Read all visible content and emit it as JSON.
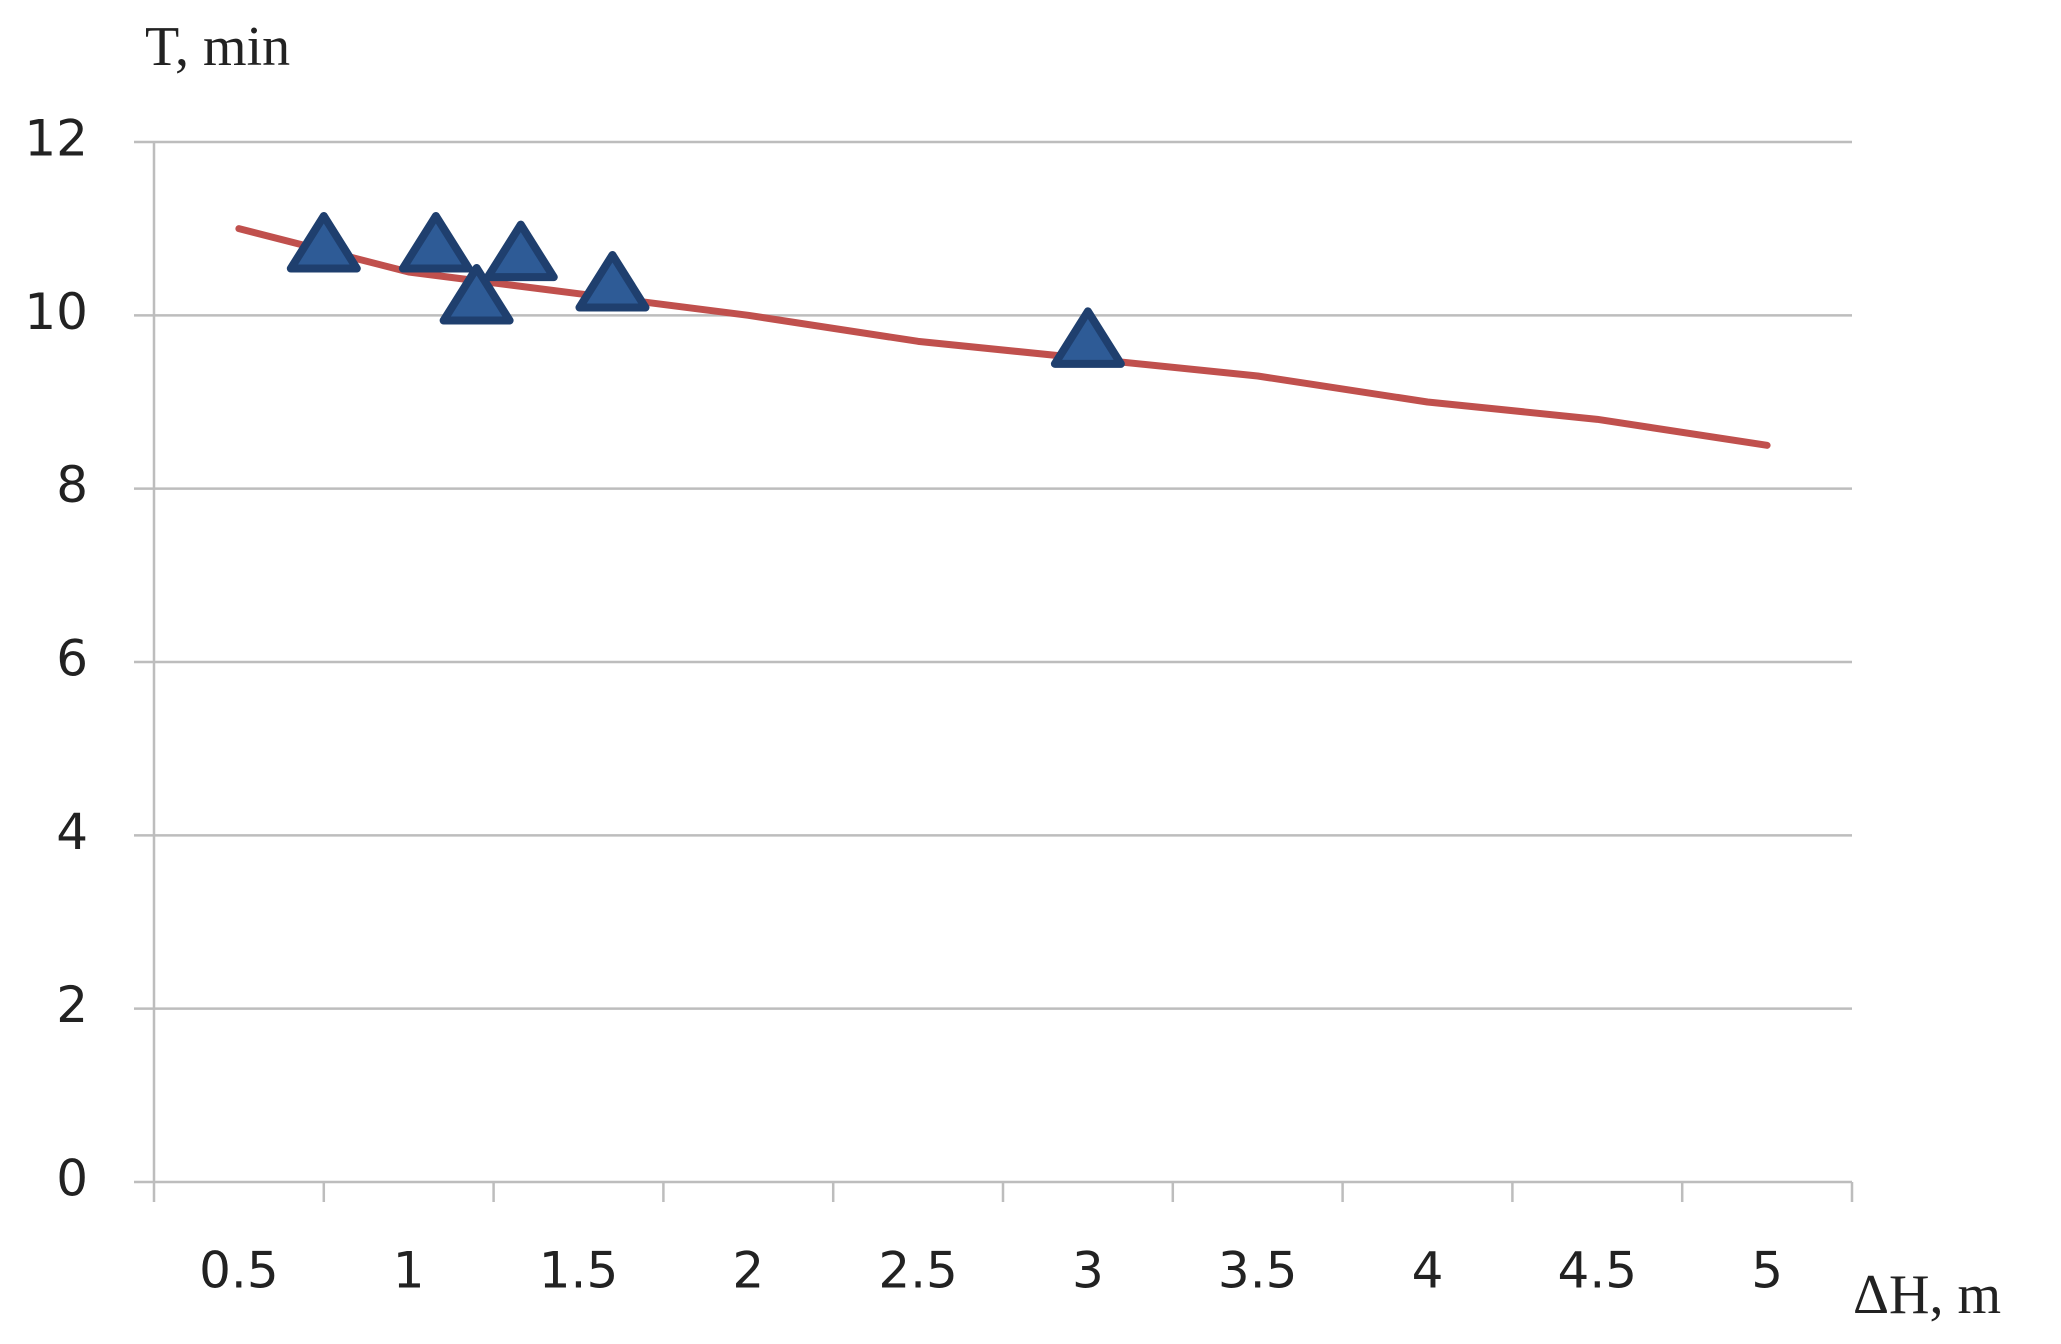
{
  "chart_data": {
    "type": "line",
    "y_label": "T, min",
    "x_label": "ΔH, m",
    "xlim": [
      0.25,
      5.25
    ],
    "xticks": [
      0.5,
      1,
      1.5,
      2,
      2.5,
      3,
      3.5,
      4,
      4.5,
      5
    ],
    "xminor_ticks": [
      0.25,
      0.75,
      1.25,
      1.75,
      2.25,
      2.75,
      3.25,
      3.75,
      4.25,
      4.75,
      5.25
    ],
    "ylim": [
      0,
      12
    ],
    "yticks": [
      0,
      2,
      4,
      6,
      8,
      10,
      12
    ],
    "grid": true,
    "series": [
      {
        "kind": "line",
        "color": "#c0504d",
        "x": [
          0.5,
          1,
          1.5,
          2,
          2.5,
          3,
          3.5,
          4,
          4.5,
          5
        ],
        "values": [
          11.0,
          10.5,
          10.25,
          10.0,
          9.7,
          9.5,
          9.3,
          9.0,
          8.8,
          8.5
        ]
      },
      {
        "kind": "scatter",
        "color": "#2e5b96",
        "x": [
          0.75,
          1.08,
          1.2,
          1.33,
          1.6,
          3.0
        ],
        "values": [
          10.8,
          10.8,
          10.2,
          10.7,
          10.35,
          9.7
        ]
      }
    ]
  }
}
